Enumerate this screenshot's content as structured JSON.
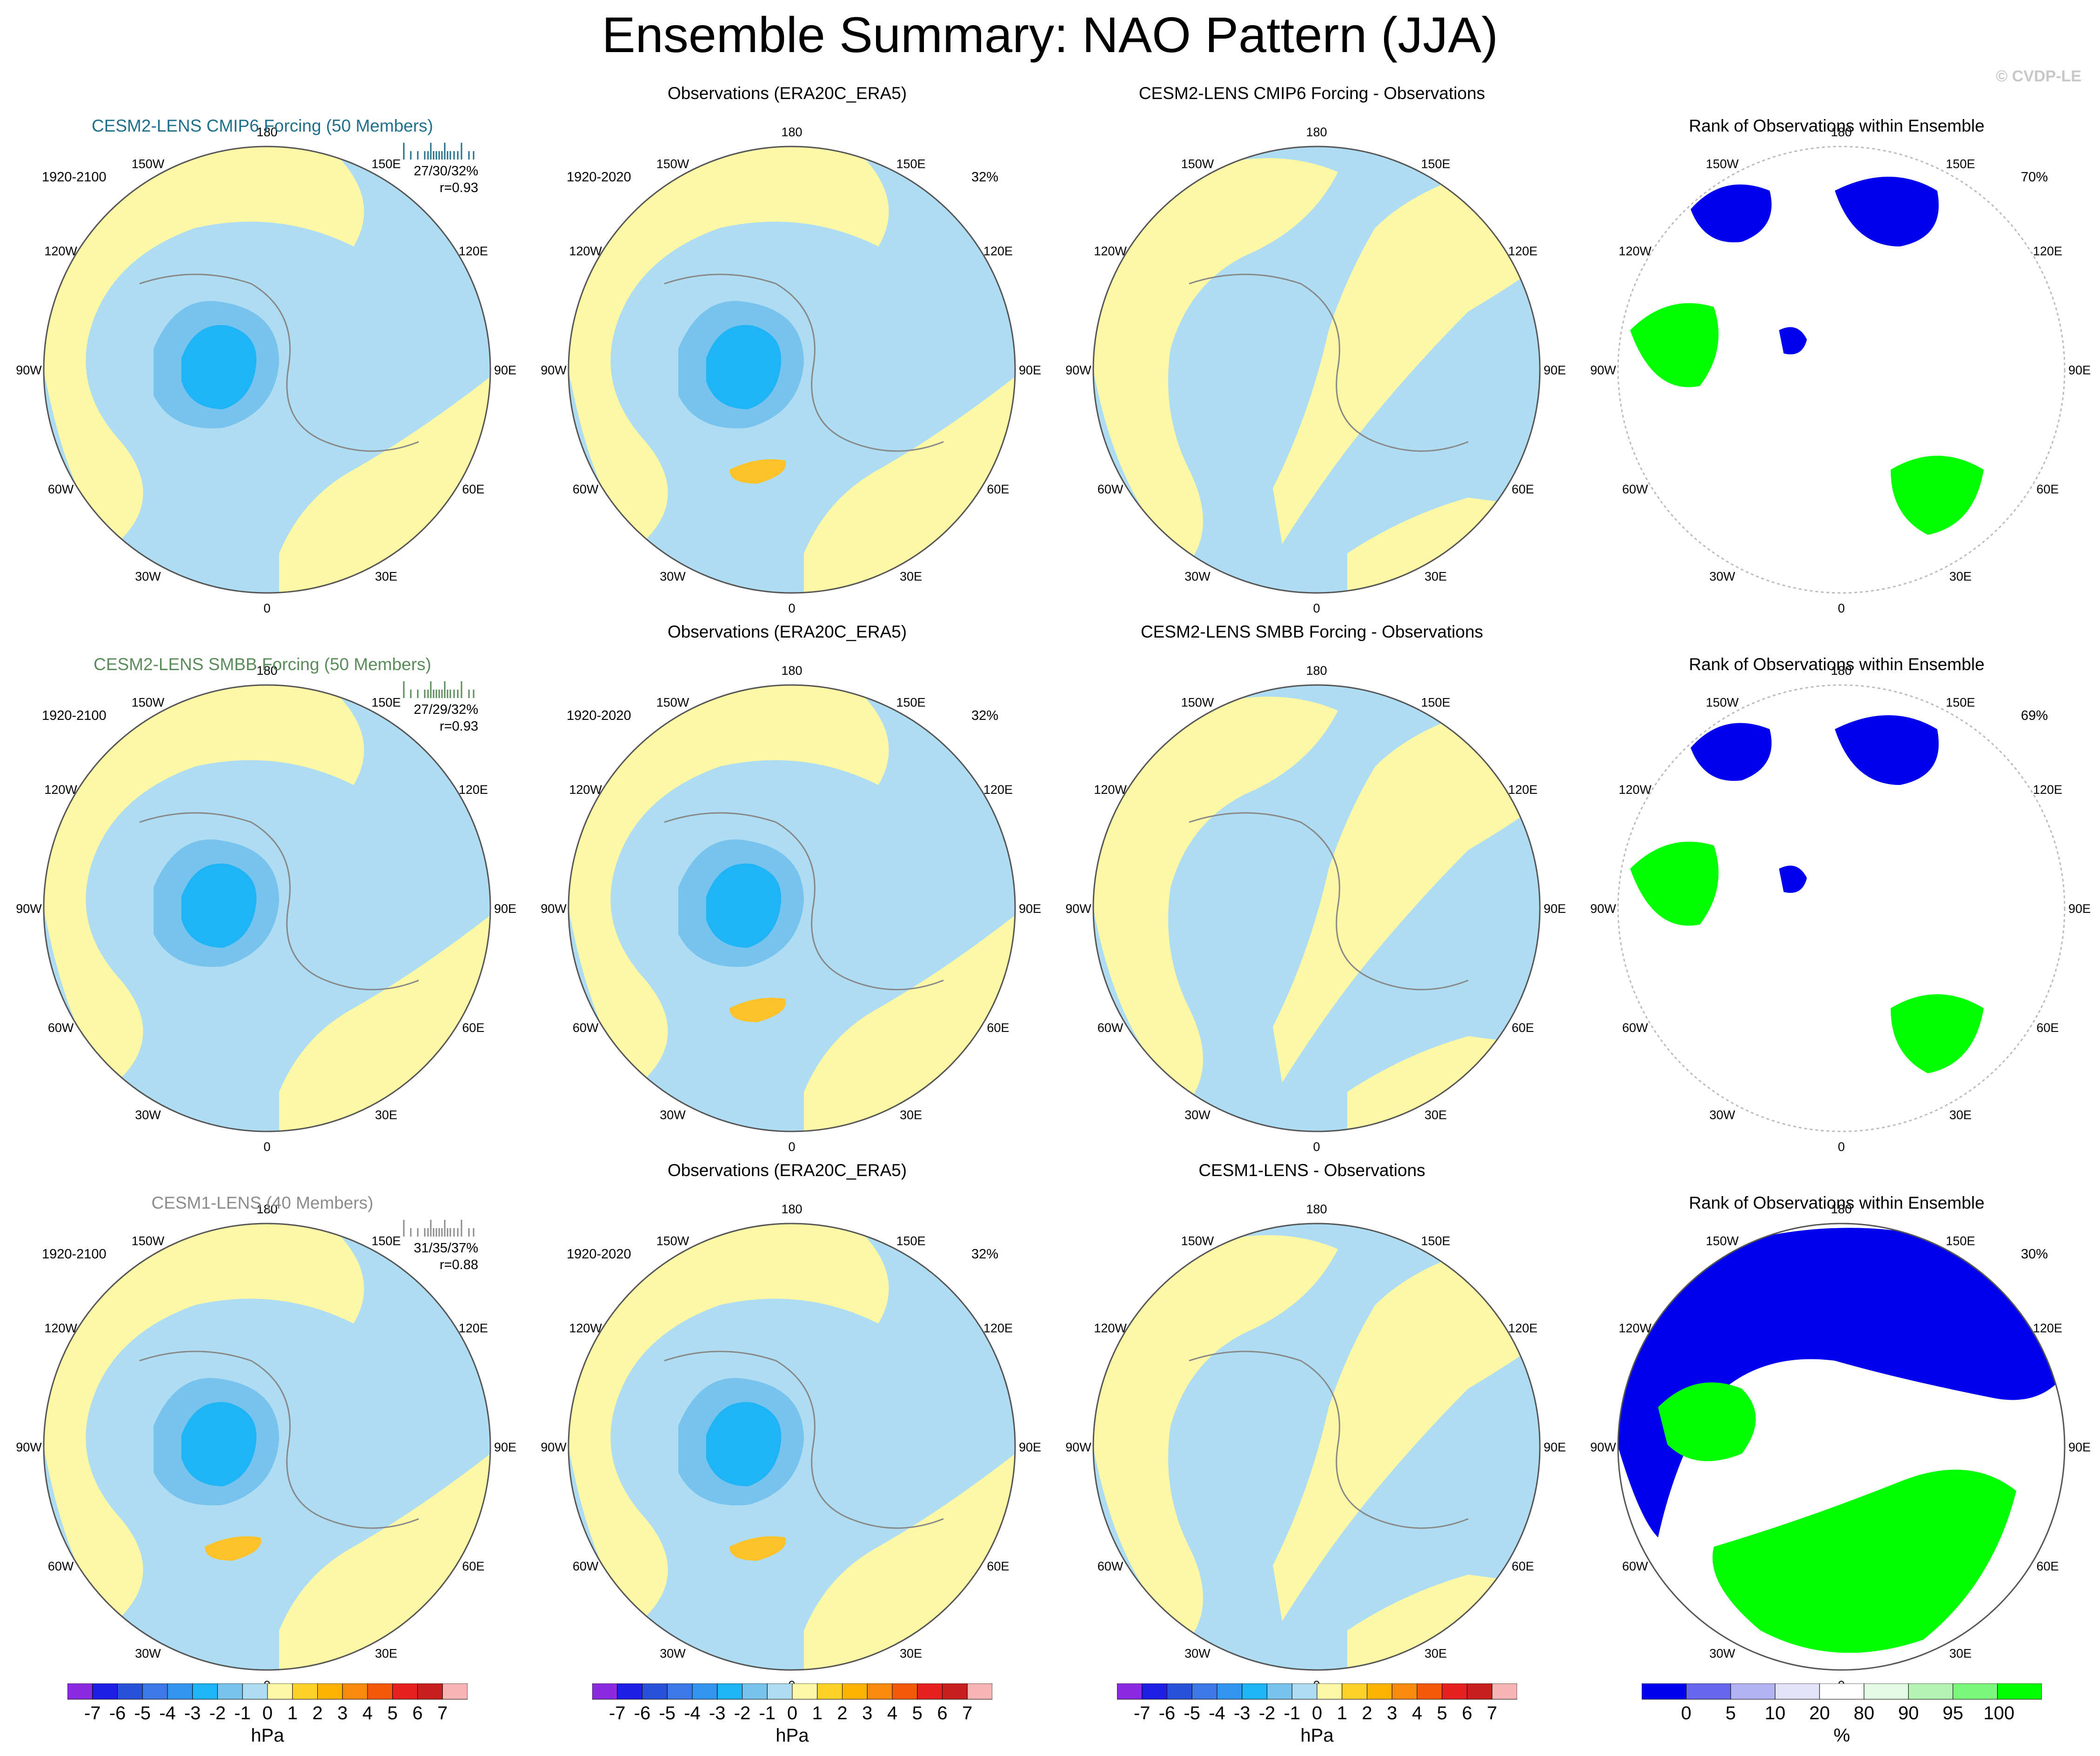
{
  "title": "Ensemble Summary: NAO Pattern (JJA)",
  "watermark": "© CVDP-LE",
  "lon_labels": [
    "180",
    "150E",
    "120E",
    "90E",
    "60E",
    "30E",
    "0",
    "30W",
    "60W",
    "90W",
    "120W",
    "150W"
  ],
  "colors": {
    "ocean_light": "#aedcf2",
    "land_yellow": "#fef7a6",
    "blue_mid": "#78c3ee",
    "blue_deep": "#1eb4f5",
    "orange": "#fdc22a",
    "rank_blue": "#0000ee",
    "rank_green": "#00ff00",
    "cmip6": "#1f6f8b",
    "smbb": "#5b8a5b",
    "lens1": "#8c8c8c"
  },
  "rows": [
    {
      "model_title": "CESM2-LENS CMIP6 Forcing (50 Members)",
      "model_color": "cmip6",
      "model_period": "1920-2100",
      "stats": "27/30/32%",
      "corr": "r=0.93",
      "obs_title": "Observations (ERA20C_ERA5)",
      "obs_period": "1920-2020",
      "obs_pct": "32%",
      "diff_title": "CESM2-LENS CMIP6 Forcing - Observations",
      "rank_title": "Rank of Observations within Ensemble",
      "rank_pct": "70%"
    },
    {
      "model_title": "CESM2-LENS SMBB Forcing (50 Members)",
      "model_color": "smbb",
      "model_period": "1920-2100",
      "stats": "27/29/32%",
      "corr": "r=0.93",
      "obs_title": "Observations (ERA20C_ERA5)",
      "obs_period": "1920-2020",
      "obs_pct": "32%",
      "diff_title": "CESM2-LENS SMBB Forcing - Observations",
      "rank_title": "Rank of Observations within Ensemble",
      "rank_pct": "69%"
    },
    {
      "model_title": "CESM1-LENS (40 Members)",
      "model_color": "lens1",
      "model_period": "1920-2100",
      "stats": "31/35/37%",
      "corr": "r=0.88",
      "obs_title": "Observations (ERA20C_ERA5)",
      "obs_period": "1920-2020",
      "obs_pct": "32%",
      "diff_title": "CESM1-LENS - Observations",
      "rank_title": "Rank of Observations within Ensemble",
      "rank_pct": "30%"
    }
  ],
  "colorbar_hpa": {
    "labels": [
      "-7",
      "-6",
      "-5",
      "-4",
      "-3",
      "-2",
      "-1",
      "0",
      "1",
      "2",
      "3",
      "4",
      "5",
      "6",
      "7"
    ],
    "colors": [
      "#8a2be2",
      "#1e1ee6",
      "#2850d8",
      "#3c78e6",
      "#3296f0",
      "#1eb4f5",
      "#78c3ee",
      "#aedcf2",
      "#fef7a6",
      "#fdd22a",
      "#fdb400",
      "#f98a10",
      "#f55a0a",
      "#e62020",
      "#c81e1e",
      "#f8b4b4"
    ],
    "unit": "hPa"
  },
  "colorbar_rank": {
    "labels": [
      "0",
      "5",
      "10",
      "20",
      "80",
      "90",
      "95",
      "100"
    ],
    "colors": [
      "#0000ee",
      "#6666ee",
      "#b3b3f3",
      "#e2e2fb",
      "#ffffff",
      "#e2fbe2",
      "#b3f3b3",
      "#7cf87c",
      "#00ff00"
    ],
    "unit": "%"
  }
}
